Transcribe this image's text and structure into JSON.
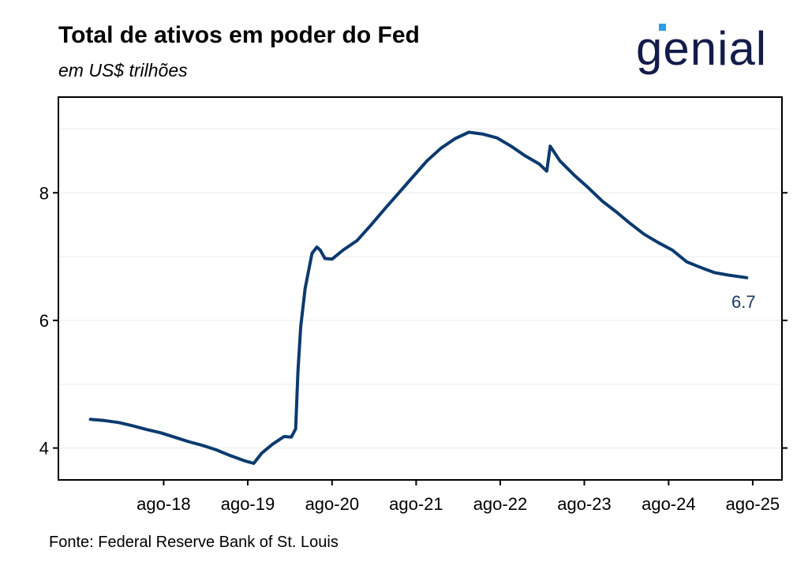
{
  "header": {
    "title": "Total de ativos em poder do Fed",
    "subtitle": "em US$ trilhões",
    "logo_text": "genial"
  },
  "footer": {
    "source": "Fonte: Federal Reserve Bank of St. Louis"
  },
  "colors": {
    "line": "#0b3a6e",
    "end_label": "#17375e",
    "logo_text": "#131c4a",
    "logo_accent": "#2e9be6",
    "grid": "#ebebeb"
  },
  "chart_data": {
    "type": "line",
    "title": "Total de ativos em poder do Fed",
    "subtitle": "em US$ trilhões",
    "xlabel": "",
    "ylabel": "",
    "x_ticks": [
      "ago-18",
      "ago-19",
      "ago-20",
      "ago-21",
      "ago-22",
      "ago-23",
      "ago-24",
      "ago-25"
    ],
    "y_ticks": [
      4,
      6,
      8
    ],
    "ylim": [
      3.5,
      9.5
    ],
    "xlim": [
      "2017-05-15",
      "2025-12-20"
    ],
    "grid": "horizontal",
    "end_label": "6.7",
    "series": [
      {
        "points": [
          [
            "2017-10-01",
            4.45
          ],
          [
            "2017-12-01",
            4.43
          ],
          [
            "2018-02-01",
            4.4
          ],
          [
            "2018-04-01",
            4.35
          ],
          [
            "2018-06-01",
            4.29
          ],
          [
            "2018-08-01",
            4.24
          ],
          [
            "2018-10-01",
            4.17
          ],
          [
            "2018-12-01",
            4.1
          ],
          [
            "2019-02-01",
            4.04
          ],
          [
            "2019-04-01",
            3.97
          ],
          [
            "2019-06-01",
            3.88
          ],
          [
            "2019-08-01",
            3.8
          ],
          [
            "2019-09-10",
            3.76
          ],
          [
            "2019-10-15",
            3.92
          ],
          [
            "2019-12-01",
            4.06
          ],
          [
            "2020-01-20",
            4.18
          ],
          [
            "2020-02-20",
            4.17
          ],
          [
            "2020-03-10",
            4.3
          ],
          [
            "2020-03-20",
            5.2
          ],
          [
            "2020-04-01",
            5.9
          ],
          [
            "2020-04-20",
            6.5
          ],
          [
            "2020-05-20",
            7.05
          ],
          [
            "2020-06-10",
            7.15
          ],
          [
            "2020-06-25",
            7.1
          ],
          [
            "2020-07-15",
            6.97
          ],
          [
            "2020-08-15",
            6.96
          ],
          [
            "2020-10-01",
            7.1
          ],
          [
            "2020-12-01",
            7.25
          ],
          [
            "2021-02-01",
            7.5
          ],
          [
            "2021-04-01",
            7.75
          ],
          [
            "2021-06-01",
            8.0
          ],
          [
            "2021-08-01",
            8.25
          ],
          [
            "2021-10-01",
            8.5
          ],
          [
            "2021-12-01",
            8.7
          ],
          [
            "2022-02-01",
            8.85
          ],
          [
            "2022-04-01",
            8.95
          ],
          [
            "2022-06-01",
            8.92
          ],
          [
            "2022-08-01",
            8.86
          ],
          [
            "2022-10-01",
            8.73
          ],
          [
            "2022-12-01",
            8.58
          ],
          [
            "2023-02-01",
            8.45
          ],
          [
            "2023-03-05",
            8.34
          ],
          [
            "2023-03-20",
            8.73
          ],
          [
            "2023-05-01",
            8.5
          ],
          [
            "2023-07-01",
            8.28
          ],
          [
            "2023-09-01",
            8.08
          ],
          [
            "2023-11-01",
            7.87
          ],
          [
            "2024-01-01",
            7.7
          ],
          [
            "2024-03-01",
            7.52
          ],
          [
            "2024-05-01",
            7.35
          ],
          [
            "2024-07-01",
            7.22
          ],
          [
            "2024-09-01",
            7.1
          ],
          [
            "2024-11-01",
            6.92
          ],
          [
            "2025-01-01",
            6.83
          ],
          [
            "2025-03-01",
            6.75
          ],
          [
            "2025-05-01",
            6.71
          ],
          [
            "2025-07-20",
            6.67
          ]
        ]
      }
    ]
  }
}
